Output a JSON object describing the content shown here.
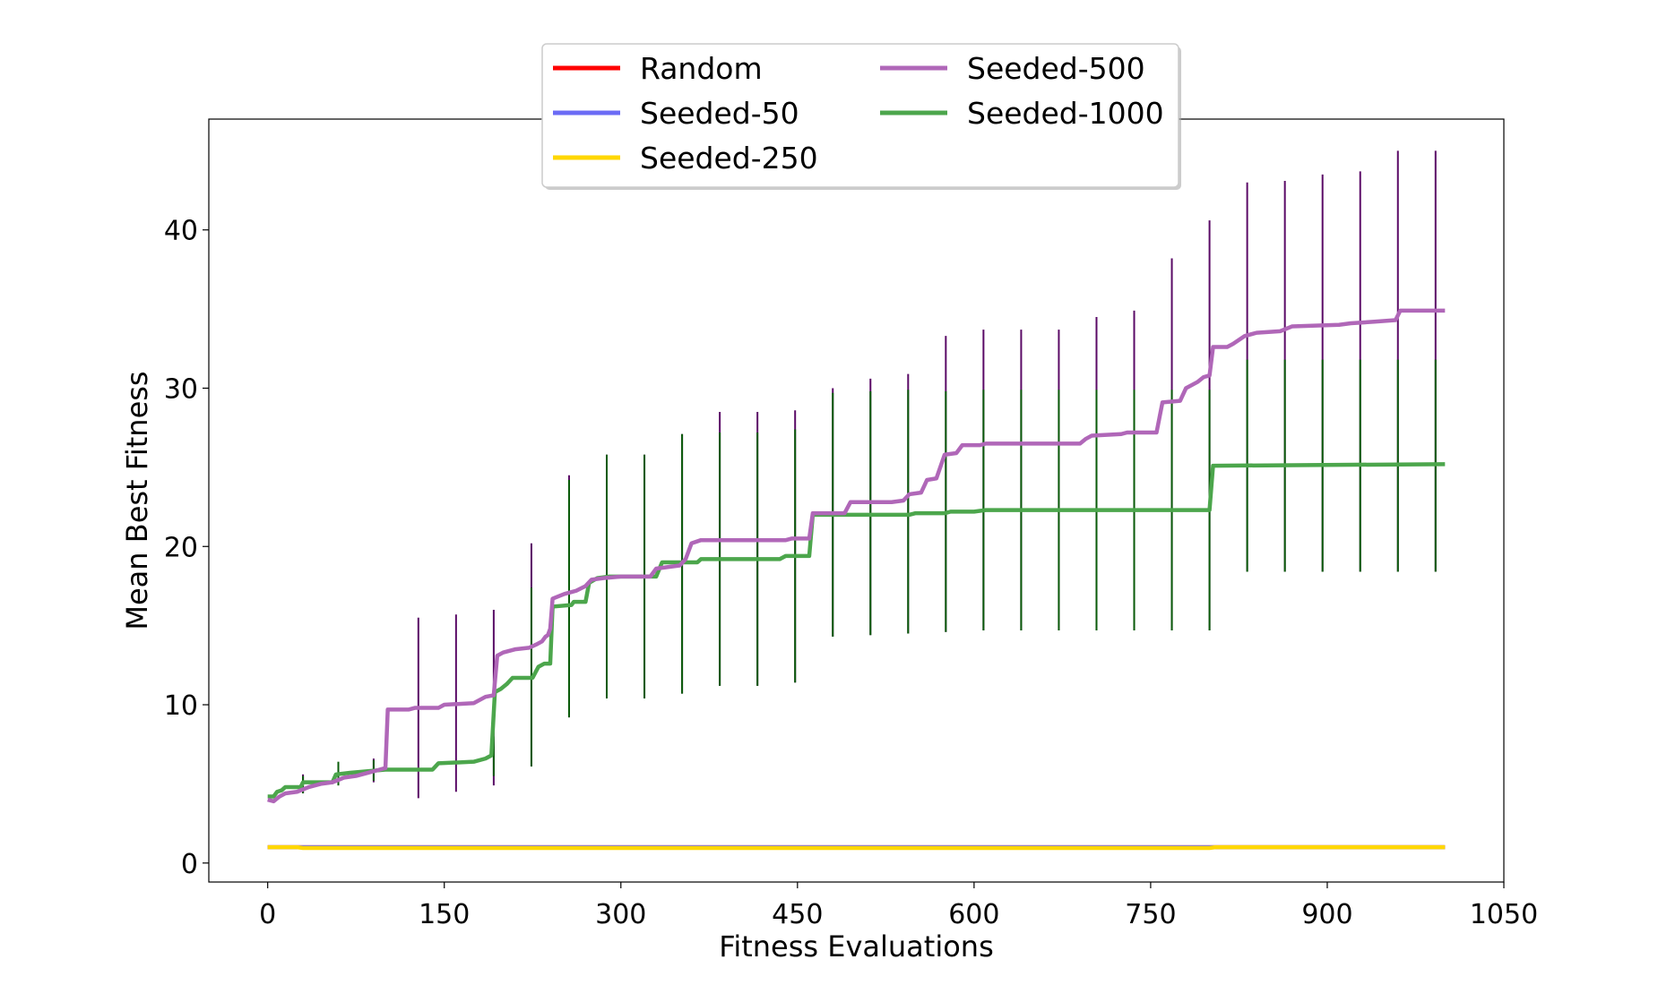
{
  "chart_data": {
    "type": "line",
    "title": "",
    "xlabel": "Fitness Evaluations",
    "ylabel": "Mean Best Fitness",
    "xlim": [
      -50,
      1050
    ],
    "ylim": [
      -1.2,
      47
    ],
    "xticks": [
      0,
      150,
      300,
      450,
      600,
      750,
      900,
      1050
    ],
    "yticks": [
      0,
      10,
      20,
      30,
      40
    ],
    "grid": false,
    "legend_position": "top-center",
    "legend_columns": 2,
    "series": [
      {
        "name": "Random",
        "color": "#ff0000",
        "points": [
          [
            0,
            1.0
          ],
          [
            1000,
            1.0
          ]
        ],
        "errorbars": []
      },
      {
        "name": "Seeded-50",
        "color": "#6b6bf5",
        "points": [
          [
            0,
            1.0
          ],
          [
            1000,
            1.0
          ]
        ],
        "errorbars": []
      },
      {
        "name": "Seeded-250",
        "color": "#ffd700",
        "points": [
          [
            0,
            1.0
          ],
          [
            25,
            1.0
          ],
          [
            30,
            0.95
          ],
          [
            700,
            0.95
          ],
          [
            800,
            0.95
          ],
          [
            805,
            1.0
          ],
          [
            1000,
            1.0
          ]
        ],
        "errorbars": []
      },
      {
        "name": "Seeded-500",
        "color": "#b067b8",
        "errcolor": "#5a0a66",
        "points": [
          [
            0,
            4.0
          ],
          [
            5,
            3.9
          ],
          [
            10,
            4.2
          ],
          [
            15,
            4.4
          ],
          [
            25,
            4.5
          ],
          [
            35,
            4.8
          ],
          [
            45,
            5.0
          ],
          [
            55,
            5.1
          ],
          [
            65,
            5.4
          ],
          [
            75,
            5.5
          ],
          [
            85,
            5.7
          ],
          [
            95,
            5.9
          ],
          [
            100,
            6.0
          ],
          [
            102,
            9.7
          ],
          [
            120,
            9.7
          ],
          [
            125,
            9.8
          ],
          [
            145,
            9.8
          ],
          [
            150,
            10.0
          ],
          [
            175,
            10.1
          ],
          [
            185,
            10.5
          ],
          [
            192,
            10.6
          ],
          [
            195,
            13.1
          ],
          [
            200,
            13.3
          ],
          [
            210,
            13.5
          ],
          [
            222,
            13.6
          ],
          [
            228,
            13.8
          ],
          [
            233,
            14.0
          ],
          [
            236,
            14.3
          ],
          [
            238,
            14.4
          ],
          [
            240,
            14.8
          ],
          [
            242,
            16.7
          ],
          [
            252,
            17.0
          ],
          [
            262,
            17.2
          ],
          [
            270,
            17.5
          ],
          [
            275,
            17.9
          ],
          [
            285,
            18.0
          ],
          [
            300,
            18.1
          ],
          [
            325,
            18.1
          ],
          [
            330,
            18.6
          ],
          [
            350,
            18.8
          ],
          [
            355,
            19.2
          ],
          [
            360,
            20.2
          ],
          [
            368,
            20.4
          ],
          [
            440,
            20.4
          ],
          [
            445,
            20.5
          ],
          [
            460,
            20.5
          ],
          [
            463,
            22.1
          ],
          [
            490,
            22.1
          ],
          [
            495,
            22.8
          ],
          [
            530,
            22.8
          ],
          [
            540,
            22.9
          ],
          [
            545,
            23.3
          ],
          [
            555,
            23.4
          ],
          [
            560,
            24.2
          ],
          [
            568,
            24.3
          ],
          [
            575,
            25.8
          ],
          [
            585,
            25.9
          ],
          [
            590,
            26.4
          ],
          [
            605,
            26.4
          ],
          [
            610,
            26.5
          ],
          [
            690,
            26.5
          ],
          [
            695,
            26.8
          ],
          [
            700,
            27.0
          ],
          [
            725,
            27.1
          ],
          [
            730,
            27.2
          ],
          [
            755,
            27.2
          ],
          [
            760,
            29.1
          ],
          [
            775,
            29.2
          ],
          [
            780,
            30.0
          ],
          [
            790,
            30.4
          ],
          [
            795,
            30.7
          ],
          [
            800,
            30.8
          ],
          [
            803,
            32.6
          ],
          [
            815,
            32.6
          ],
          [
            820,
            32.8
          ],
          [
            830,
            33.3
          ],
          [
            840,
            33.5
          ],
          [
            860,
            33.6
          ],
          [
            870,
            33.9
          ],
          [
            910,
            34.0
          ],
          [
            920,
            34.1
          ],
          [
            940,
            34.2
          ],
          [
            958,
            34.3
          ],
          [
            962,
            34.9
          ],
          [
            1000,
            34.9
          ]
        ],
        "errorbars": [
          [
            30,
            4.4,
            5.6
          ],
          [
            60,
            5.2,
            6.2
          ],
          [
            90,
            5.1,
            6.6
          ],
          [
            128,
            4.1,
            15.5
          ],
          [
            160,
            4.5,
            15.7
          ],
          [
            192,
            4.9,
            16.0
          ],
          [
            224,
            6.1,
            20.2
          ],
          [
            256,
            9.2,
            24.5
          ],
          [
            288,
            10.4,
            25.8
          ],
          [
            320,
            10.4,
            25.8
          ],
          [
            352,
            10.7,
            27.1
          ],
          [
            384,
            11.2,
            28.5
          ],
          [
            416,
            11.2,
            28.5
          ],
          [
            448,
            11.4,
            28.6
          ],
          [
            480,
            14.3,
            30.0
          ],
          [
            512,
            14.4,
            30.6
          ],
          [
            544,
            14.5,
            30.9
          ],
          [
            576,
            14.6,
            33.3
          ],
          [
            608,
            14.7,
            33.7
          ],
          [
            640,
            14.7,
            33.7
          ],
          [
            672,
            14.7,
            33.7
          ],
          [
            704,
            14.7,
            34.5
          ],
          [
            736,
            14.7,
            34.9
          ],
          [
            768,
            14.7,
            38.2
          ],
          [
            800,
            14.7,
            40.6
          ],
          [
            832,
            18.4,
            43.0
          ],
          [
            864,
            18.4,
            43.1
          ],
          [
            896,
            18.4,
            43.5
          ],
          [
            928,
            18.4,
            43.7
          ],
          [
            960,
            18.4,
            45.0
          ],
          [
            992,
            18.4,
            45.0
          ]
        ]
      },
      {
        "name": "Seeded-1000",
        "color": "#4ca64c",
        "errcolor": "#0a5c0a",
        "points": [
          [
            0,
            4.2
          ],
          [
            5,
            4.2
          ],
          [
            8,
            4.5
          ],
          [
            12,
            4.6
          ],
          [
            15,
            4.8
          ],
          [
            28,
            4.8
          ],
          [
            30,
            5.1
          ],
          [
            55,
            5.1
          ],
          [
            58,
            5.6
          ],
          [
            70,
            5.7
          ],
          [
            85,
            5.8
          ],
          [
            100,
            5.9
          ],
          [
            140,
            5.9
          ],
          [
            145,
            6.3
          ],
          [
            175,
            6.4
          ],
          [
            185,
            6.6
          ],
          [
            190,
            6.8
          ],
          [
            193,
            10.8
          ],
          [
            198,
            11.0
          ],
          [
            203,
            11.3
          ],
          [
            208,
            11.7
          ],
          [
            225,
            11.7
          ],
          [
            230,
            12.4
          ],
          [
            235,
            12.6
          ],
          [
            240,
            12.6
          ],
          [
            242,
            16.2
          ],
          [
            258,
            16.3
          ],
          [
            260,
            16.5
          ],
          [
            270,
            16.5
          ],
          [
            273,
            17.7
          ],
          [
            280,
            18.0
          ],
          [
            290,
            18.1
          ],
          [
            330,
            18.1
          ],
          [
            335,
            19.0
          ],
          [
            365,
            19.0
          ],
          [
            368,
            19.2
          ],
          [
            435,
            19.2
          ],
          [
            440,
            19.4
          ],
          [
            460,
            19.4
          ],
          [
            463,
            22.0
          ],
          [
            545,
            22.0
          ],
          [
            550,
            22.1
          ],
          [
            575,
            22.1
          ],
          [
            580,
            22.2
          ],
          [
            600,
            22.2
          ],
          [
            610,
            22.3
          ],
          [
            800,
            22.3
          ],
          [
            803,
            25.1
          ],
          [
            1000,
            25.2
          ]
        ],
        "errorbars": [
          [
            30,
            4.4,
            5.5
          ],
          [
            60,
            4.9,
            6.4
          ],
          [
            90,
            5.2,
            6.5
          ],
          [
            128,
            5.9,
            5.9
          ],
          [
            160,
            6.3,
            6.3
          ],
          [
            192,
            5.5,
            8.0
          ],
          [
            224,
            6.1,
            17.4
          ],
          [
            256,
            9.2,
            24.2
          ],
          [
            288,
            10.4,
            25.8
          ],
          [
            320,
            10.4,
            25.8
          ],
          [
            352,
            10.7,
            27.1
          ],
          [
            384,
            11.2,
            27.2
          ],
          [
            416,
            11.2,
            27.2
          ],
          [
            448,
            11.4,
            27.4
          ],
          [
            480,
            14.3,
            29.7
          ],
          [
            512,
            14.4,
            29.8
          ],
          [
            544,
            14.5,
            29.9
          ],
          [
            576,
            14.6,
            29.8
          ],
          [
            608,
            14.7,
            29.9
          ],
          [
            640,
            14.7,
            29.9
          ],
          [
            672,
            14.7,
            29.9
          ],
          [
            704,
            14.7,
            29.9
          ],
          [
            736,
            14.7,
            29.9
          ],
          [
            768,
            14.7,
            29.9
          ],
          [
            800,
            14.7,
            29.9
          ],
          [
            832,
            18.4,
            31.8
          ],
          [
            864,
            18.4,
            31.8
          ],
          [
            896,
            18.4,
            31.8
          ],
          [
            928,
            18.4,
            31.8
          ],
          [
            960,
            18.4,
            31.8
          ],
          [
            992,
            18.4,
            31.8
          ]
        ]
      }
    ]
  }
}
